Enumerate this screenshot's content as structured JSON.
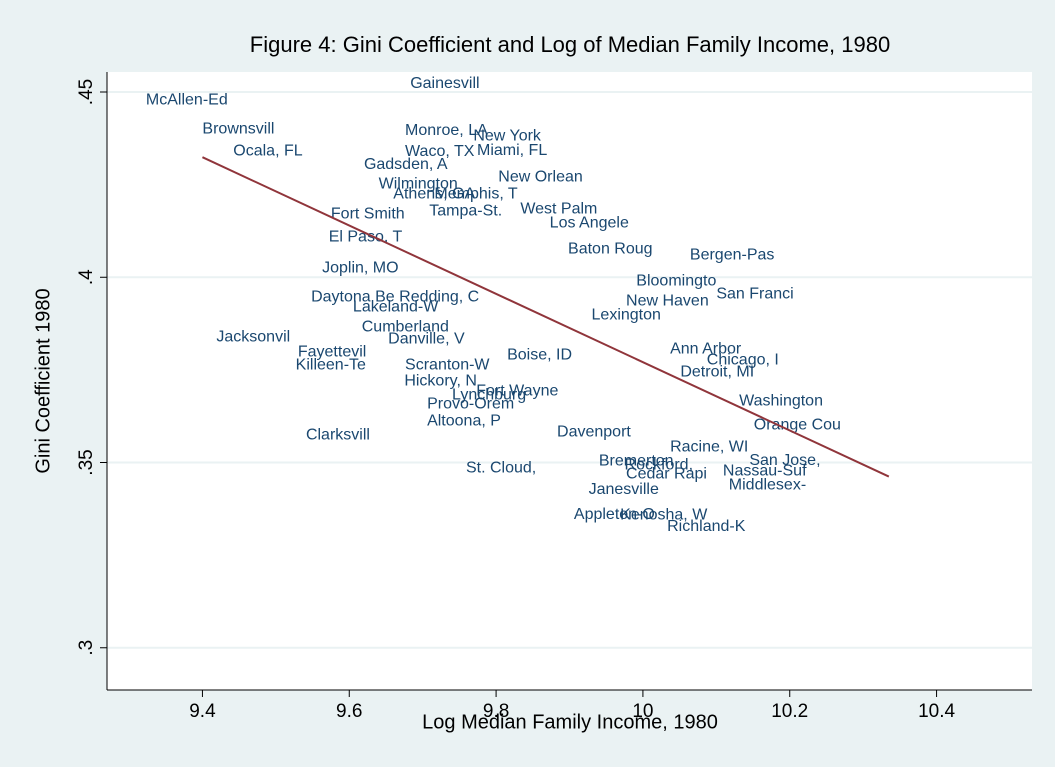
{
  "chart_data": {
    "type": "scatter",
    "title": "Figure 4: Gini Coefficient and Log of Median Family Income, 1980",
    "x_label": "Log Median Family Income, 1980",
    "y_label": "Gini Coefficient 1980",
    "label_color": "#1a476f",
    "labels": [
      "Gainesvill",
      "McAllen-Ed",
      "Brownsvill",
      "Ocala, FL",
      "Monroe, LA",
      "New York",
      "Waco, TX",
      "Miami, FL",
      "Gadsden, A",
      "New Orlean",
      "Wilmington",
      "Athens, GA",
      "Memphis, T",
      "Tampa-St.",
      "West Palm",
      "Los Angele",
      "Fort Smith",
      "El Paso, T",
      "Baton Roug",
      "Bergen-Pas",
      "Joplin, MO",
      "Bloomingto",
      "San Franci",
      "Daytona Be",
      "Redding, C",
      "New Haven",
      "Lakeland-W",
      "Lexington",
      "Cumberland",
      "Danville, V",
      "Jacksonvil",
      "Fayettevil",
      "Killeen-Te",
      "Boise, ID",
      "Ann Arbor",
      "Chicago, I",
      "Scranton-W",
      "Hickory, N",
      "Detroit, MI",
      "Fort Wayne",
      "Lynchburg",
      "Provo-Orem",
      "Washington",
      "Altoona, P",
      "Orange Cou",
      "Clarksvill",
      "Davenport",
      "Racine, WI",
      "San Jose,",
      "St. Cloud,",
      "Bremerton",
      "Rockford,",
      "Cedar Rapi",
      "Nassau-Suf",
      "Middlesex-",
      "Janesville",
      "Appleton-O",
      "Kenosha, W",
      "Richland-K"
    ],
    "x": [
      9.683,
      9.323,
      9.4,
      9.442,
      9.676,
      9.769,
      9.676,
      9.774,
      9.62,
      9.803,
      9.64,
      9.66,
      9.716,
      9.709,
      9.833,
      9.873,
      9.575,
      9.572,
      9.898,
      10.064,
      9.563,
      9.991,
      10.1,
      9.548,
      9.668,
      9.977,
      9.605,
      9.93,
      9.617,
      9.653,
      9.419,
      9.53,
      9.527,
      9.815,
      10.037,
      10.087,
      9.676,
      9.675,
      10.051,
      9.773,
      9.74,
      9.706,
      10.131,
      9.706,
      10.151,
      9.541,
      9.883,
      10.037,
      10.145,
      9.759,
      9.94,
      9.975,
      9.977,
      10.109,
      10.117,
      9.926,
      9.906,
      9.969,
      10.033
    ],
    "y": [
      0.4522,
      0.4478,
      0.44,
      0.434,
      0.4395,
      0.4381,
      0.4338,
      0.4341,
      0.4303,
      0.427,
      0.4251,
      0.4224,
      0.4224,
      0.4178,
      0.4184,
      0.4146,
      0.417,
      0.4108,
      0.4076,
      0.4059,
      0.4024,
      0.3989,
      0.3954,
      0.3946,
      0.3946,
      0.3935,
      0.3919,
      0.3897,
      0.3865,
      0.3832,
      0.3838,
      0.3797,
      0.3762,
      0.3789,
      0.3805,
      0.3776,
      0.3762,
      0.3719,
      0.3743,
      0.3692,
      0.3681,
      0.3657,
      0.3665,
      0.3611,
      0.36,
      0.3573,
      0.3581,
      0.3541,
      0.3505,
      0.3484,
      0.3503,
      0.3492,
      0.3468,
      0.3476,
      0.3438,
      0.3427,
      0.3359,
      0.3357,
      0.3327
    ],
    "fit_line": {
      "x": [
        9.4,
        10.335
      ],
      "y": [
        0.4324,
        0.3462
      ],
      "color": "#90353b"
    },
    "xlim": [
      9.27,
      10.53
    ],
    "ylim": [
      0.2886,
      0.4554
    ],
    "xticks": [
      9.4,
      9.6,
      9.8,
      10,
      10.2,
      10.4
    ],
    "yticks": [
      {
        "value": 0.3,
        "label": ".3"
      },
      {
        "value": 0.35,
        "label": ".35"
      },
      {
        "value": 0.4,
        "label": ".4"
      },
      {
        "value": 0.45,
        "label": ".45"
      }
    ],
    "grid": true
  }
}
